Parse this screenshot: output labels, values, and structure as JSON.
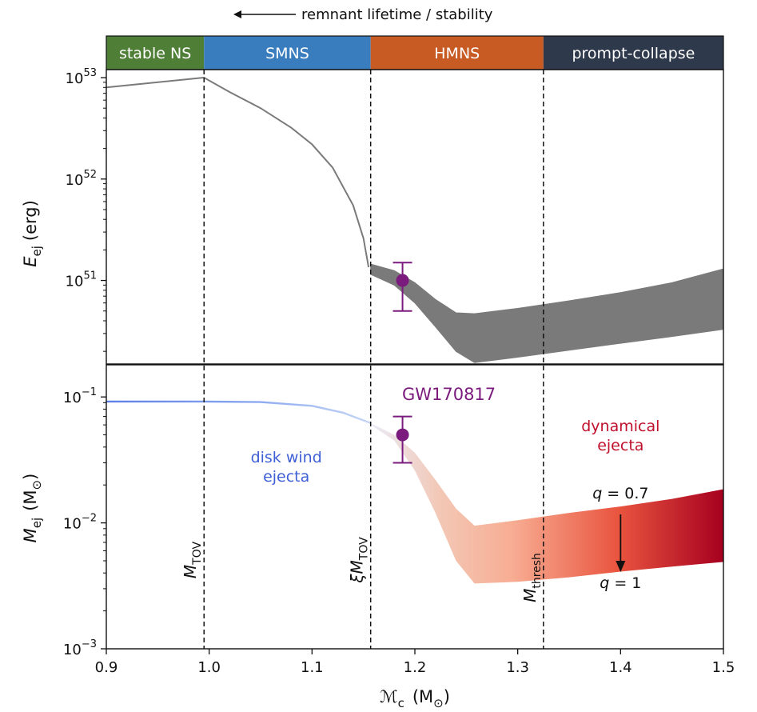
{
  "chart_data": [
    {
      "type": "area",
      "panel": "top",
      "ylabel": "E_ej (erg)",
      "ylabel_parts": {
        "sym": "E",
        "sub": "ej",
        "unit": "(erg)"
      },
      "yscale": "log",
      "ylim": [
        1.5e+50,
        1.2e+53
      ],
      "yticks": [
        {
          "exp": "53",
          "value": 1e+53
        },
        {
          "exp": "52",
          "value": 1e+52
        },
        {
          "exp": "51",
          "value": 1e+51
        }
      ],
      "color": "#7a7a7a",
      "series": [
        {
          "x": [
            0.9,
            0.995,
            1.02,
            1.05,
            1.08,
            1.1,
            1.12,
            1.14,
            1.15,
            1.155
          ],
          "values": [
            8e+52,
            1e+53,
            7.2e+52,
            5e+52,
            3.2e+52,
            2.2e+52,
            1.3e+52,
            5.5e+51,
            2.6e+51,
            1.35e+51
          ]
        }
      ],
      "band": {
        "x": [
          1.157,
          1.18,
          1.2,
          1.22,
          1.24,
          1.258,
          1.3,
          1.35,
          1.4,
          1.45,
          1.5
        ],
        "upper": [
          1.45e+51,
          1.25e+51,
          9.5e+50,
          6.5e+50,
          4.8e+50,
          4.7e+50,
          5.3e+50,
          6.3e+50,
          7.6e+50,
          9.5e+50,
          1.3e+51
        ],
        "lower": [
          1.15e+51,
          9e+50,
          6e+50,
          3.5e+50,
          2e+50,
          1.55e+50,
          1.75e+50,
          2.05e+50,
          2.4e+50,
          2.8e+50,
          3.3e+50
        ]
      },
      "points": [
        {
          "x": 1.188,
          "y": 1e+51,
          "yerr_low": 5e+50,
          "yerr_high": 1.5e+51,
          "color": "#7b1b7e"
        }
      ]
    },
    {
      "type": "area",
      "panel": "bottom",
      "ylabel": "M_ej (M_⊙)",
      "ylabel_parts": {
        "sym": "M",
        "sub": "ej",
        "unit": "(M",
        "unit_sub": "⊙",
        "unit_close": ")"
      },
      "xlabel": "𝓜c (M⊙)",
      "xlabel_parts": {
        "sym": "ℳ",
        "sub": "c",
        "unit": "(M",
        "unit_sub": "⊙",
        "unit_close": ")"
      },
      "yscale": "log",
      "ylim": [
        0.001,
        0.18
      ],
      "yticks": [
        {
          "exp": "−1",
          "value": 0.1
        },
        {
          "exp": "−2",
          "value": 0.01
        },
        {
          "exp": "−3",
          "value": 0.001
        }
      ],
      "xlim": [
        0.9,
        1.5
      ],
      "xticks": [
        "0.9",
        "1.0",
        "1.1",
        "1.2",
        "1.3",
        "1.4",
        "1.5"
      ],
      "series": [
        {
          "name": "disk wind ejecta",
          "x": [
            0.9,
            0.995,
            1.05,
            1.1,
            1.13,
            1.157
          ],
          "values": [
            0.092,
            0.092,
            0.091,
            0.085,
            0.075,
            0.062
          ]
        }
      ],
      "band": {
        "x": [
          1.157,
          1.18,
          1.2,
          1.22,
          1.24,
          1.258,
          1.3,
          1.35,
          1.4,
          1.45,
          1.5
        ],
        "upper": [
          0.062,
          0.05,
          0.036,
          0.022,
          0.013,
          0.0095,
          0.0105,
          0.012,
          0.0135,
          0.0155,
          0.0185
        ],
        "lower": [
          0.06,
          0.045,
          0.026,
          0.012,
          0.005,
          0.0033,
          0.0034,
          0.0037,
          0.0041,
          0.0045,
          0.0049
        ]
      },
      "points": [
        {
          "x": 1.188,
          "y": 0.05,
          "yerr_low": 0.03,
          "yerr_high": 0.07,
          "color": "#7b1b7e"
        }
      ],
      "annotations": {
        "gw_label": "GW170817",
        "disk_wind": [
          "disk wind",
          "ejecta"
        ],
        "dynamical": [
          "dynamical",
          "ejecta"
        ],
        "q_top": {
          "sym": "q",
          "rest": " = 0.7"
        },
        "q_bottom": {
          "sym": "q",
          "rest": " = 1"
        },
        "m_tov": {
          "sym": "M",
          "sub": "TOV"
        },
        "xi_m_tov": {
          "sym": "ξM",
          "sub": "TOV"
        },
        "m_thresh": {
          "sym": "M",
          "sub": "thresh"
        }
      }
    }
  ],
  "header": {
    "arrow_text": "remnant lifetime / stability",
    "regions": [
      {
        "label": "stable NS",
        "color": "#4f7f37"
      },
      {
        "label": "SMNS",
        "color": "#3a7dbf"
      },
      {
        "label": "HMNS",
        "color": "#c85a23"
      },
      {
        "label": "prompt-collapse",
        "color": "#2e3a4b"
      }
    ]
  },
  "vlines": {
    "m_tov": 0.995,
    "xi_m_tov": 1.157,
    "m_thresh": 1.325
  },
  "colors": {
    "disk_wind": "#3f5fd6",
    "dynamical": "#c0102c",
    "gw": "#7b1b7e",
    "top_fill": "#7a7a7a"
  }
}
